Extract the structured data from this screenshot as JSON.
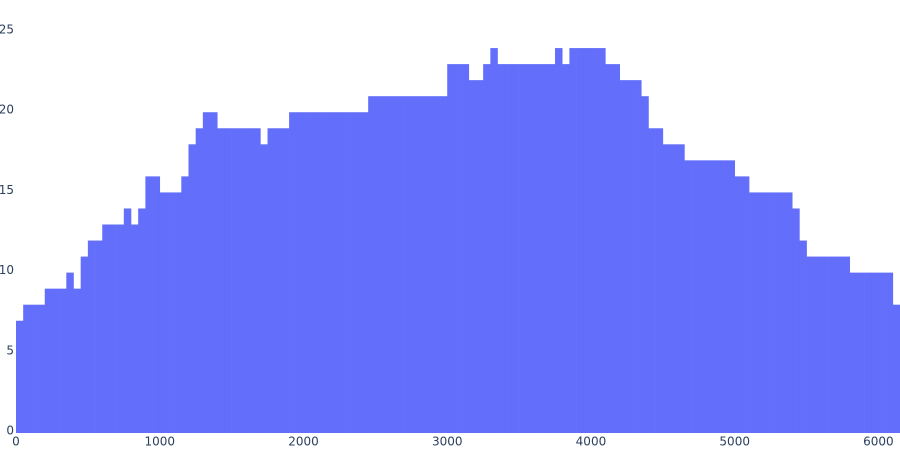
{
  "chart_data": {
    "type": "bar",
    "color": "#636efa",
    "x": [
      0,
      50,
      100,
      150,
      200,
      250,
      300,
      350,
      400,
      450,
      500,
      550,
      600,
      650,
      700,
      750,
      800,
      850,
      900,
      950,
      1000,
      1050,
      1100,
      1150,
      1200,
      1250,
      1300,
      1350,
      1400,
      1450,
      1500,
      1550,
      1600,
      1650,
      1700,
      1750,
      1800,
      1850,
      1900,
      1950,
      2000,
      2050,
      2100,
      2150,
      2200,
      2250,
      2300,
      2350,
      2400,
      2450,
      2500,
      2550,
      2600,
      2650,
      2700,
      2750,
      2800,
      2850,
      2900,
      2950,
      3000,
      3050,
      3100,
      3150,
      3200,
      3250,
      3300,
      3350,
      3400,
      3450,
      3500,
      3550,
      3600,
      3650,
      3700,
      3750,
      3800,
      3850,
      3900,
      3950,
      4000,
      4050,
      4100,
      4150,
      4200,
      4250,
      4300,
      4350,
      4400,
      4450,
      4500,
      4550,
      4600,
      4650,
      4700,
      4750,
      4800,
      4850,
      4900,
      4950,
      5000,
      5050,
      5100,
      5150,
      5200,
      5250,
      5300,
      5350,
      5400,
      5450,
      5500,
      5550,
      5600,
      5650,
      5700,
      5750,
      5800,
      5850,
      5900,
      5950,
      6000,
      6050,
      6100
    ],
    "values": [
      7,
      8,
      8,
      8,
      9,
      9,
      9,
      10,
      9,
      11,
      12,
      12,
      13,
      13,
      13,
      14,
      13,
      14,
      16,
      16,
      15,
      15,
      15,
      16,
      18,
      19,
      20,
      20,
      19,
      19,
      19,
      19,
      19,
      19,
      18,
      19,
      19,
      19,
      20,
      20,
      20,
      20,
      20,
      20,
      20,
      20,
      20,
      20,
      20,
      21,
      21,
      21,
      21,
      21,
      21,
      21,
      21,
      21,
      21,
      21,
      23,
      23,
      23,
      22,
      22,
      23,
      24,
      23,
      23,
      23,
      23,
      23,
      23,
      23,
      23,
      24,
      23,
      24,
      24,
      24,
      24,
      24,
      23,
      23,
      22,
      22,
      22,
      21,
      19,
      19,
      18,
      18,
      18,
      17,
      17,
      17,
      17,
      17,
      17,
      17,
      16,
      16,
      15,
      15,
      15,
      15,
      15,
      15,
      14,
      12,
      11,
      11,
      11,
      11,
      11,
      11,
      10,
      10,
      10,
      10,
      10,
      10,
      8
    ],
    "xlim": [
      0,
      6150
    ],
    "ylim": [
      0,
      26
    ],
    "xticks": [
      0,
      1000,
      2000,
      3000,
      4000,
      5000,
      6000
    ],
    "yticks": [
      0,
      5,
      10,
      15,
      20,
      25
    ]
  }
}
